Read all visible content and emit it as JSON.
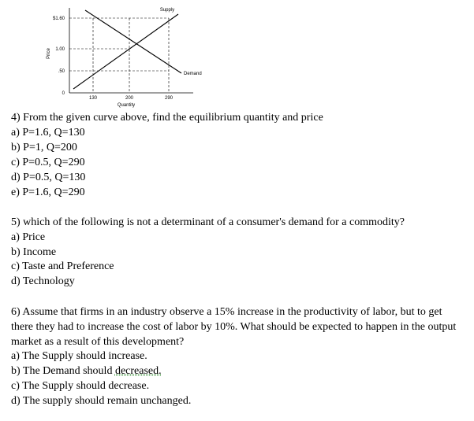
{
  "figure": {
    "y_axis_label": "Price",
    "x_axis_label": "Quantity",
    "y_tick_labels": [
      "$1.60",
      "1.00",
      ".50",
      "0"
    ],
    "x_tick_labels": [
      "130",
      "200",
      "290"
    ],
    "supply_label": "Supply",
    "demand_label": "Demand"
  },
  "questions": [
    {
      "prompt": "4) From the given curve above,  find the equilibrium quantity and price",
      "options": [
        "a) P=1.6, Q=130",
        "b) P=1, Q=200",
        "c) P=0.5, Q=290",
        "d) P=0.5, Q=130",
        "e) P=1.6, Q=290"
      ]
    },
    {
      "prompt": "5) which of the following is not a determinant of a consumer's demand for a commodity?",
      "options": [
        "a) Price",
        "b) Income",
        "c) Taste and Preference",
        "d) Technology"
      ]
    },
    {
      "prompt": "6) Assume that firms in an industry observe a 15% increase in the productivity of labor, but to get there they had to increase the cost of labor by 10%. What should be expected to happen in the output market as a result of this development?",
      "options": [
        "a) The Supply should increase.",
        "b) The Demand should ",
        "c) The Supply should decrease.",
        "d) The supply should remain unchanged."
      ],
      "misspelled_word": "decreased."
    }
  ]
}
